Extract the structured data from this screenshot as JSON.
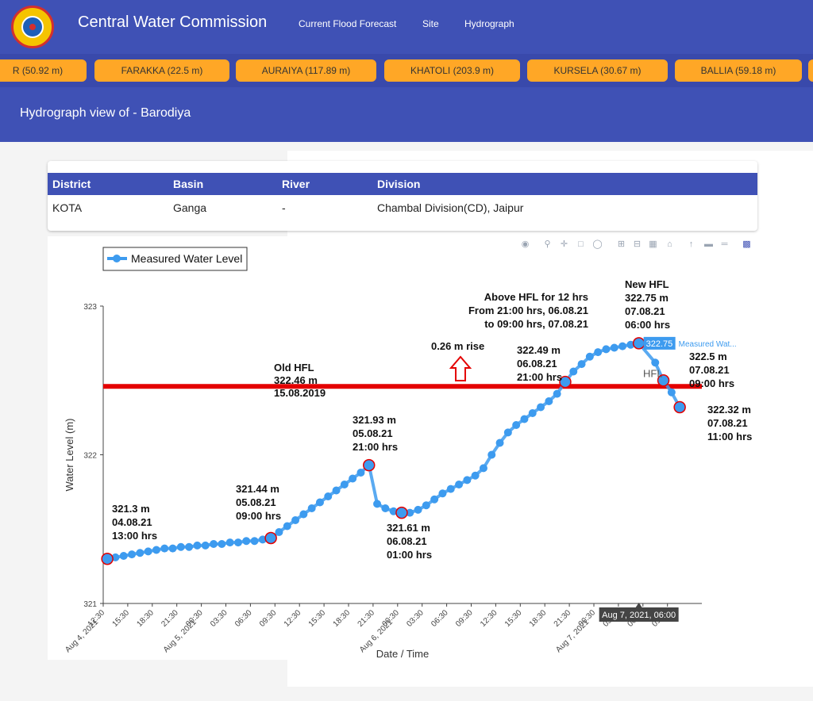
{
  "header": {
    "title": "Central Water Commission",
    "nav": [
      "Current Flood Forecast",
      "Site",
      "Hydrograph"
    ]
  },
  "ticker": [
    "R (50.92 m)",
    "FARAKKA (22.5 m)",
    "AURAIYA (117.89 m)",
    "KHATOLI (203.9 m)",
    "KURSELA (30.67 m)",
    "BALLIA (59.18 m)"
  ],
  "page": {
    "title": "Hydrograph view of - Barodiya"
  },
  "info": {
    "headers": [
      "District",
      "Basin",
      "River",
      "Division"
    ],
    "values": [
      "KOTA",
      "Ganga",
      "-",
      "Chambal Division(CD), Jaipur"
    ]
  },
  "colors": {
    "header": "#3f51b5",
    "ticker_bg": "#3949ab",
    "station": "#ffa726",
    "series": "#3d9bef",
    "hfl": "#e40000"
  },
  "chart_data": {
    "type": "line",
    "legend": "Measured Water Level",
    "legend_position": "top-left",
    "ylabel": "Water Level (m)",
    "xlabel": "Date / Time",
    "ylim": [
      321,
      323
    ],
    "yticks": [
      "321",
      "322",
      "323"
    ],
    "x_ticks": [
      "12:30",
      "15:30",
      "18:30",
      "21:30",
      "00:30",
      "03:30",
      "06:30",
      "09:30",
      "12:30",
      "15:30",
      "18:30",
      "21:30",
      "00:30",
      "03:30",
      "06:30",
      "09:30",
      "12:30",
      "15:30",
      "18:30",
      "21:30",
      "00:30",
      "03:30",
      "06:30",
      "09:30"
    ],
    "x_date_ticks": [
      "Aug 4, 2021",
      "Aug 5, 2021",
      "Aug 6, 2021",
      "Aug 7, 2021"
    ],
    "hfl_level": 322.46,
    "hfl_label": "HFL",
    "hover_label": "322.75",
    "hover_series": "Measured Wat...",
    "hover_x": "Aug 7, 2021, 06:00",
    "series": [
      {
        "name": "Measured Water Level",
        "x": [
          "2021-08-04 13:00",
          "2021-08-04 14:00",
          "2021-08-04 15:00",
          "2021-08-04 16:00",
          "2021-08-04 17:00",
          "2021-08-04 18:00",
          "2021-08-04 19:00",
          "2021-08-04 20:00",
          "2021-08-04 21:00",
          "2021-08-04 22:00",
          "2021-08-04 23:00",
          "2021-08-05 00:00",
          "2021-08-05 01:00",
          "2021-08-05 02:00",
          "2021-08-05 03:00",
          "2021-08-05 04:00",
          "2021-08-05 05:00",
          "2021-08-05 06:00",
          "2021-08-05 07:00",
          "2021-08-05 08:00",
          "2021-08-05 09:00",
          "2021-08-05 10:00",
          "2021-08-05 11:00",
          "2021-08-05 12:00",
          "2021-08-05 13:00",
          "2021-08-05 14:00",
          "2021-08-05 15:00",
          "2021-08-05 16:00",
          "2021-08-05 17:00",
          "2021-08-05 18:00",
          "2021-08-05 19:00",
          "2021-08-05 20:00",
          "2021-08-05 21:00",
          "2021-08-05 22:00",
          "2021-08-05 23:00",
          "2021-08-06 00:00",
          "2021-08-06 01:00",
          "2021-08-06 02:00",
          "2021-08-06 03:00",
          "2021-08-06 04:00",
          "2021-08-06 05:00",
          "2021-08-06 06:00",
          "2021-08-06 07:00",
          "2021-08-06 08:00",
          "2021-08-06 09:00",
          "2021-08-06 10:00",
          "2021-08-06 11:00",
          "2021-08-06 12:00",
          "2021-08-06 13:00",
          "2021-08-06 14:00",
          "2021-08-06 15:00",
          "2021-08-06 16:00",
          "2021-08-06 17:00",
          "2021-08-06 18:00",
          "2021-08-06 19:00",
          "2021-08-06 20:00",
          "2021-08-06 21:00",
          "2021-08-06 22:00",
          "2021-08-06 23:00",
          "2021-08-07 00:00",
          "2021-08-07 01:00",
          "2021-08-07 02:00",
          "2021-08-07 03:00",
          "2021-08-07 04:00",
          "2021-08-07 05:00",
          "2021-08-07 06:00",
          "2021-08-07 08:00",
          "2021-08-07 09:00",
          "2021-08-07 10:00",
          "2021-08-07 11:00"
        ],
        "y": [
          321.3,
          321.31,
          321.32,
          321.33,
          321.34,
          321.35,
          321.36,
          321.37,
          321.37,
          321.38,
          321.38,
          321.39,
          321.39,
          321.4,
          321.4,
          321.41,
          321.41,
          321.42,
          321.42,
          321.43,
          321.44,
          321.48,
          321.52,
          321.56,
          321.6,
          321.64,
          321.68,
          321.72,
          321.76,
          321.8,
          321.84,
          321.88,
          321.93,
          321.67,
          321.64,
          321.62,
          321.61,
          321.61,
          321.63,
          321.66,
          321.7,
          321.74,
          321.77,
          321.8,
          321.83,
          321.86,
          321.91,
          322.0,
          322.08,
          322.15,
          322.2,
          322.24,
          322.28,
          322.32,
          322.36,
          322.41,
          322.49,
          322.56,
          322.61,
          322.66,
          322.69,
          322.71,
          322.72,
          322.73,
          322.74,
          322.75,
          322.62,
          322.5,
          322.42,
          322.32
        ]
      }
    ],
    "annotations": [
      {
        "x": "2021-08-04 13:00",
        "y": 321.3,
        "text": [
          "321.3 m",
          "04.08.21",
          "13:00 hrs"
        ]
      },
      {
        "x": "2021-08-05 09:00",
        "y": 321.44,
        "text": [
          "321.44 m",
          "05.08.21",
          "09:00 hrs"
        ]
      },
      {
        "x": "2021-08-05 21:00",
        "y": 321.93,
        "text": [
          "321.93 m",
          "05.08.21",
          "21:00 hrs"
        ]
      },
      {
        "x": "2021-08-06 01:00",
        "y": 321.61,
        "text": [
          "321.61 m",
          "06.08.21",
          "01:00 hrs"
        ]
      },
      {
        "x": "2021-08-06 21:00",
        "y": 322.49,
        "text": [
          "322.49 m",
          "06.08.21",
          "21:00 hrs"
        ]
      },
      {
        "x": "2021-08-07 06:00",
        "y": 322.75,
        "text": [
          "New HFL",
          "322.75 m",
          "07.08.21",
          "06:00 hrs"
        ]
      },
      {
        "x": "2021-08-07 09:00",
        "y": 322.5,
        "text": [
          "322.5 m",
          "07.08.21",
          "09:00 hrs"
        ]
      },
      {
        "x": "2021-08-07 11:00",
        "y": 322.32,
        "text": [
          "322.32 m",
          "07.08.21",
          "11:00 hrs"
        ]
      }
    ],
    "notes": {
      "old_hfl": [
        "Old HFL",
        "322.46 m",
        "15.08.2019"
      ],
      "above_hfl": [
        "Above HFL for 12 hrs",
        "From 21:00 hrs, 06.08.21",
        "to 09:00 hrs, 07.08.21"
      ],
      "rise": "0.26 m rise"
    }
  }
}
